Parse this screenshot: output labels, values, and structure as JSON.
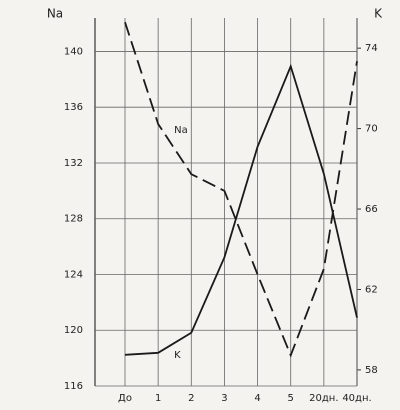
{
  "chart_data": {
    "type": "line",
    "ylabel": "Na",
    "y2label": "K",
    "categories": [
      "До",
      "1",
      "2",
      "3",
      "4",
      "5",
      "20дн.",
      "40дн."
    ],
    "series": [
      {
        "name": "Na",
        "color": "#1a1a1a",
        "style": "dashed",
        "values": [
          142.1,
          134.8,
          131.2,
          130,
          124,
          118.2,
          124.4,
          139.3
        ]
      },
      {
        "name": "K",
        "color": "#1a1a1a",
        "style": "solid",
        "axis": "y2",
        "values": [
          58.75,
          58.85,
          59.85,
          63.6,
          69.1,
          73.1,
          67.75,
          60.6
        ]
      }
    ],
    "ylim": [
      116,
      142.4
    ],
    "yticks": [
      116,
      120,
      124,
      128,
      132,
      136,
      140
    ],
    "y2lim": [
      57.2,
      75.5
    ],
    "y2ticks": [
      58,
      62,
      66,
      70,
      74
    ],
    "grid": true
  }
}
